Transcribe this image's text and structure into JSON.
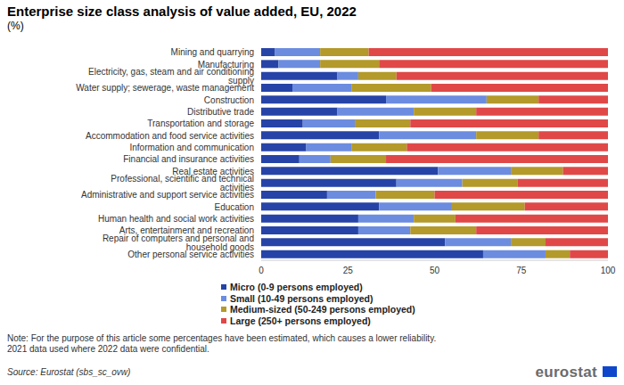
{
  "chart_data": {
    "type": "bar",
    "title": "Enterprise size class analysis of value added, EU, 2022",
    "subtitle": "(%)",
    "orientation": "horizontal",
    "stacked": true,
    "grid": false,
    "legend": "bottom",
    "categories": [
      "Mining and quarrying",
      "Manufacturing",
      "Electricity, gas, steam and air conditioning supply",
      "Water supply; sewerage, waste management",
      "Construction",
      "Distributive trade",
      "Transportation and storage",
      "Accommodation and food service activities",
      "Information and communication",
      "Financial and insurance activities",
      "Real estate activities",
      "Professional, scientific and technical activities",
      "Administrative and support service activities",
      "Education",
      "Human health and social work activities",
      "Arts, entertainment and recreation",
      "Repair of computers and personal and household goods",
      "Other personal service activities"
    ],
    "series": [
      {
        "name": "Micro (0-9 persons employed)",
        "color": "#2644A7",
        "values": [
          4,
          5,
          22,
          9,
          36,
          22,
          12,
          34,
          13,
          11,
          51,
          39,
          19,
          34,
          28,
          28,
          53,
          64
        ]
      },
      {
        "name": "Small (10-49 persons employed)",
        "color": "#6C8CE0",
        "values": [
          13,
          12,
          6,
          17,
          29,
          22,
          15,
          28,
          13,
          9,
          21,
          19,
          14,
          21,
          16,
          15,
          19,
          18
        ]
      },
      {
        "name": "Medium-sized (50-249 persons employed)",
        "color": "#B39A2A",
        "values": [
          14,
          17,
          11,
          23,
          15,
          18,
          16,
          18,
          16,
          16,
          15,
          16,
          17,
          21,
          12,
          19,
          10,
          7
        ]
      },
      {
        "name": "Large (250+ persons employed)",
        "color": "#E04848",
        "values": [
          69,
          66,
          61,
          51,
          20,
          38,
          57,
          20,
          58,
          64,
          13,
          26,
          50,
          24,
          44,
          38,
          18,
          11
        ]
      }
    ],
    "xlim": [
      0,
      100
    ],
    "xticks": [
      0,
      25,
      50,
      75,
      100
    ],
    "note": [
      "Note: For the purpose of this article some percentages have been estimated, which causes a lower reliability.",
      "2021 data used where 2022 data were confidential."
    ],
    "source": "Source: Eurostat (sbs_sc_ovw)",
    "logo": "eurostat"
  }
}
